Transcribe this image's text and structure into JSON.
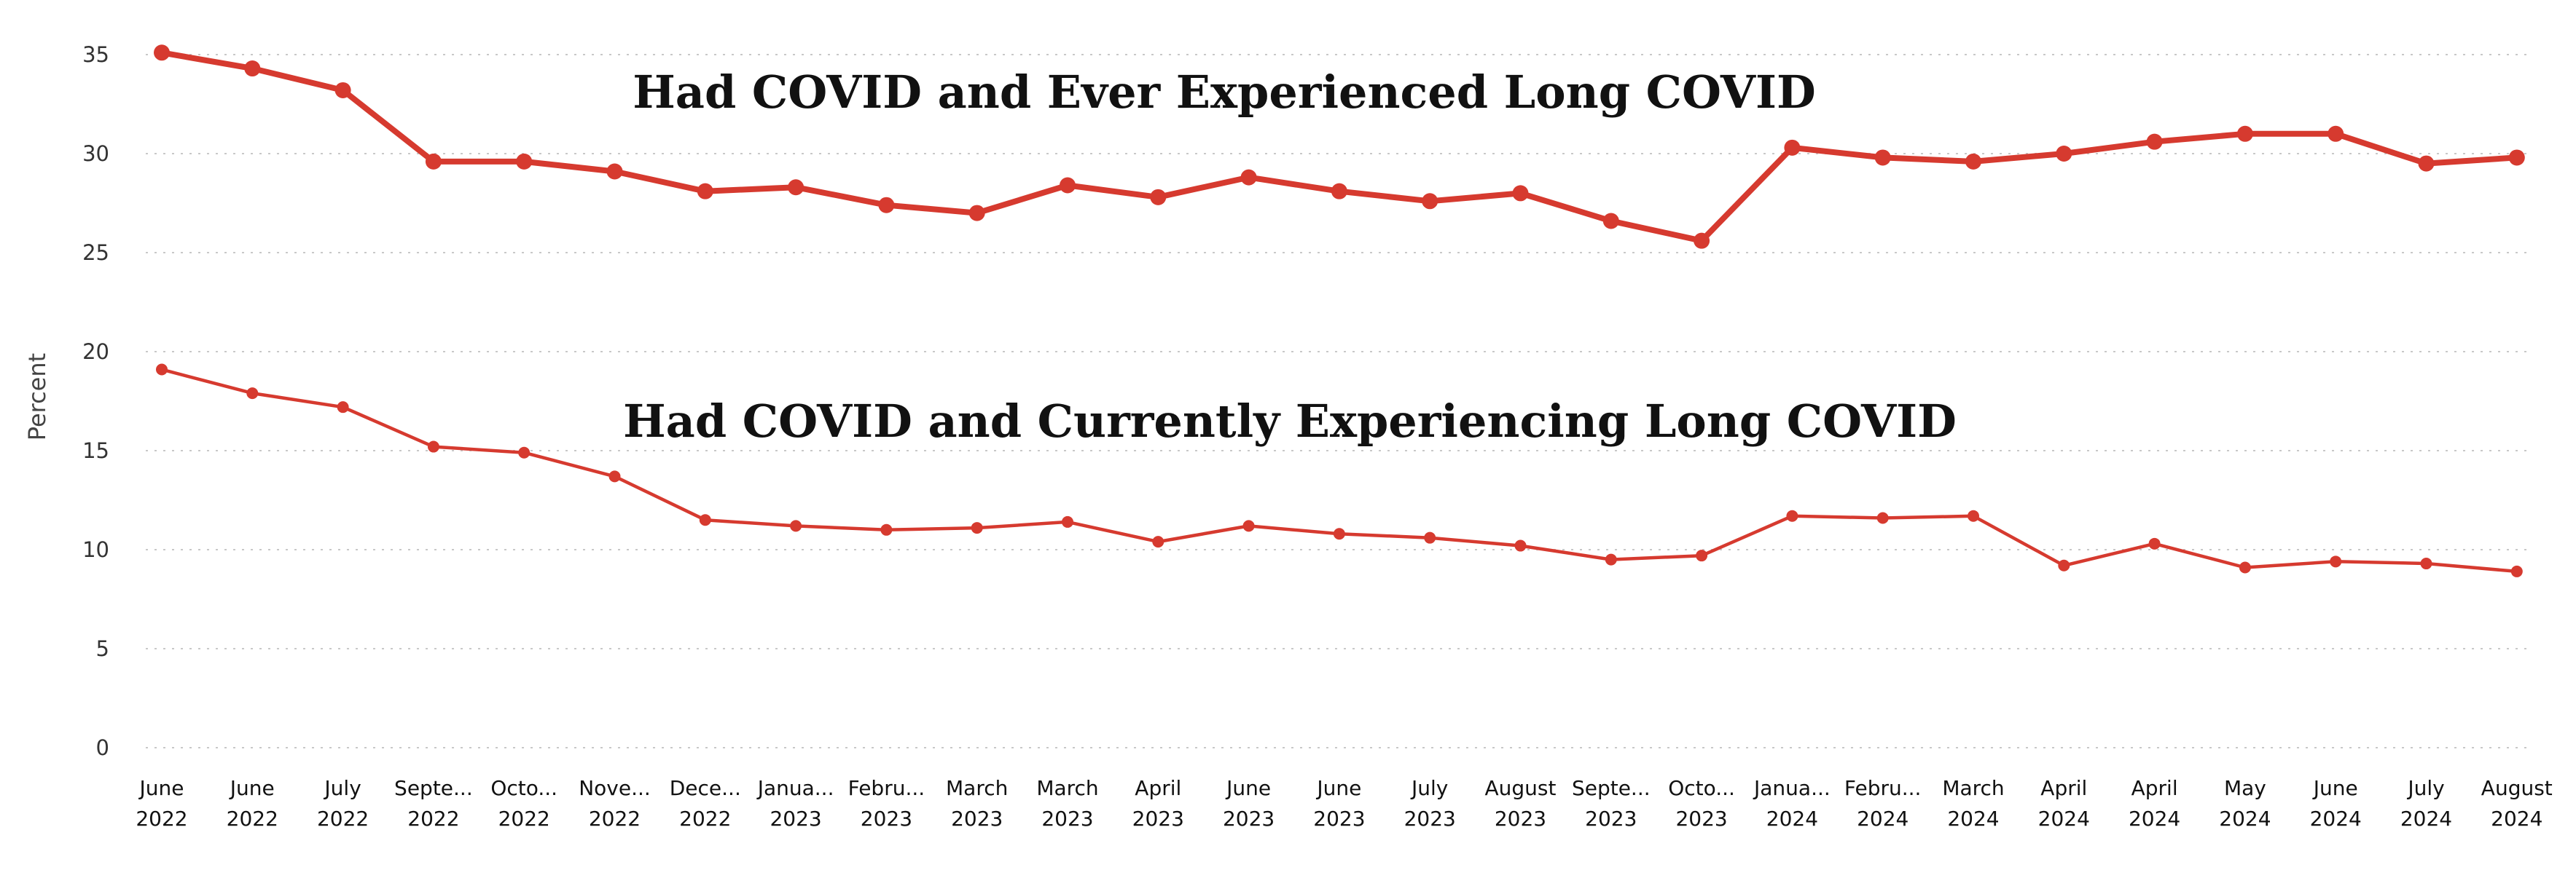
{
  "chart_data": {
    "type": "line",
    "title": "",
    "xlabel": "",
    "ylabel": "Percent",
    "ylim": [
      0,
      35
    ],
    "yticks": [
      0,
      5,
      10,
      15,
      20,
      25,
      30,
      35
    ],
    "grid": true,
    "colors": {
      "line": "#d63a2f",
      "grid": "#c8c8c8"
    },
    "categories": [
      [
        "June",
        "2022"
      ],
      [
        "June",
        "2022"
      ],
      [
        "July",
        "2022"
      ],
      [
        "Septe...",
        "2022"
      ],
      [
        "Octo...",
        "2022"
      ],
      [
        "Nove...",
        "2022"
      ],
      [
        "Dece...",
        "2022"
      ],
      [
        "Janua...",
        "2023"
      ],
      [
        "Febru...",
        "2023"
      ],
      [
        "March",
        "2023"
      ],
      [
        "March",
        "2023"
      ],
      [
        "April",
        "2023"
      ],
      [
        "June",
        "2023"
      ],
      [
        "June",
        "2023"
      ],
      [
        "July",
        "2023"
      ],
      [
        "August",
        "2023"
      ],
      [
        "Septe...",
        "2023"
      ],
      [
        "Octo...",
        "2023"
      ],
      [
        "Janua...",
        "2024"
      ],
      [
        "Febru...",
        "2024"
      ],
      [
        "March",
        "2024"
      ],
      [
        "April",
        "2024"
      ],
      [
        "April",
        "2024"
      ],
      [
        "May",
        "2024"
      ],
      [
        "June",
        "2024"
      ],
      [
        "July",
        "2024"
      ],
      [
        "August",
        "2024"
      ]
    ],
    "series": [
      {
        "name": "Had COVID and Ever Experienced Long COVID",
        "values": [
          35.1,
          34.3,
          33.2,
          29.6,
          29.6,
          29.1,
          28.1,
          28.3,
          27.4,
          27.0,
          28.4,
          27.8,
          28.8,
          28.1,
          27.6,
          28.0,
          26.6,
          25.6,
          30.3,
          29.8,
          29.6,
          30.0,
          30.6,
          31.0,
          31.0,
          29.5,
          29.8
        ],
        "style": "thick"
      },
      {
        "name": "Had COVID and Currently Experiencing Long COVID",
        "values": [
          19.1,
          17.9,
          17.2,
          15.2,
          14.9,
          13.7,
          11.5,
          11.2,
          11.0,
          11.1,
          11.4,
          10.4,
          11.2,
          10.8,
          10.6,
          10.2,
          9.5,
          9.7,
          11.7,
          11.6,
          11.7,
          9.2,
          10.3,
          9.1,
          9.4,
          9.3,
          8.9
        ],
        "style": "thin"
      }
    ]
  }
}
